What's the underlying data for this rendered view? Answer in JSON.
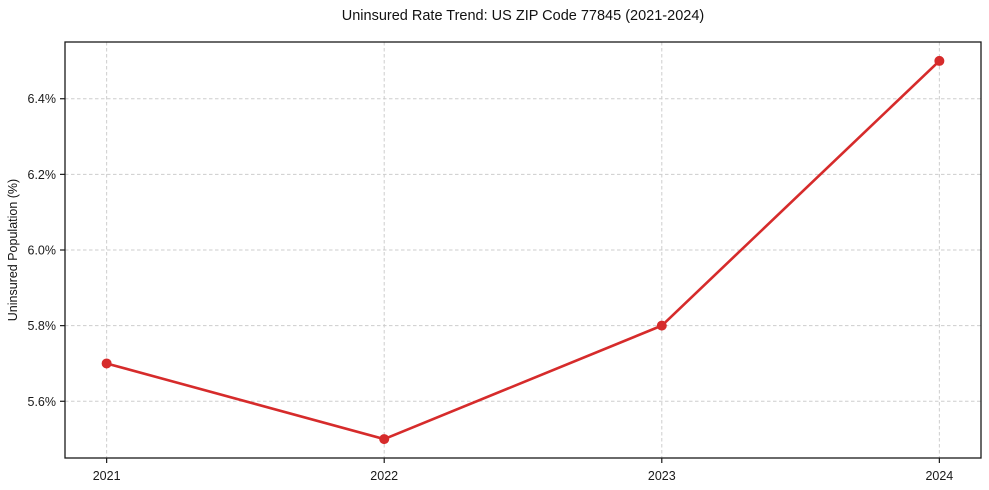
{
  "chart_data": {
    "type": "line",
    "title": "Uninsured Rate Trend: US ZIP Code 77845 (2021-2024)",
    "xlabel": "",
    "ylabel": "Uninsured Population (%)",
    "x": [
      2021,
      2022,
      2023,
      2024
    ],
    "x_tick_labels": [
      "2021",
      "2022",
      "2023",
      "2024"
    ],
    "series": [
      {
        "name": "uninsured-rate",
        "values": [
          5.7,
          5.5,
          5.8,
          6.5
        ],
        "color": "#d62b2b"
      }
    ],
    "y_ticks": [
      5.6,
      5.8,
      6.0,
      6.2,
      6.4
    ],
    "y_tick_labels": [
      "5.6%",
      "5.8%",
      "6.0%",
      "6.2%",
      "6.4%"
    ],
    "xlim": [
      2020.85,
      2024.15
    ],
    "ylim": [
      5.45,
      6.55
    ],
    "grid": true,
    "grid_color": "#cdcdcd",
    "grid_dash": "3.5 2.5",
    "spine_color": "#1a1a1a",
    "tick_label_color": "#1a1a1a",
    "background": "#ffffff",
    "line_width": 2.6,
    "marker": "circle",
    "marker_radius": 5,
    "legend": "none"
  }
}
